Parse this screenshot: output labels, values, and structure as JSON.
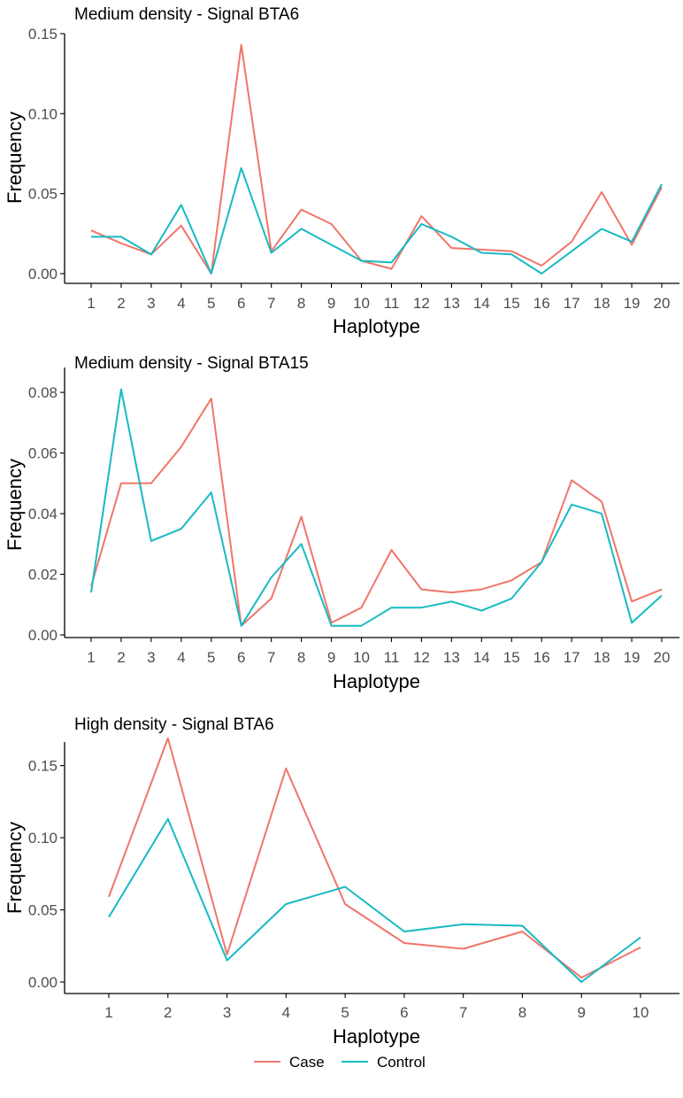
{
  "colors": {
    "case": "#f0756a",
    "control": "#16bac4",
    "axis": "#000000"
  },
  "legend": {
    "case_label": "Case",
    "control_label": "Control"
  },
  "chart_data": [
    {
      "type": "line",
      "title": "Medium density - Signal BTA6",
      "xlabel": "Haplotype",
      "ylabel": "Frequency",
      "categories": [
        "1",
        "2",
        "3",
        "4",
        "5",
        "6",
        "7",
        "8",
        "9",
        "10",
        "11",
        "12",
        "13",
        "14",
        "15",
        "16",
        "17",
        "18",
        "19",
        "20"
      ],
      "ylim": [
        0,
        0.15
      ],
      "yticks": [
        0,
        0.05,
        0.1,
        0.15
      ],
      "ytick_labels": [
        "0.00",
        "0.05",
        "0.10",
        "0.15"
      ],
      "series": [
        {
          "name": "Case",
          "values": [
            0.027,
            0.019,
            0.012,
            0.03,
            0.0,
            0.143,
            0.014,
            0.04,
            0.031,
            0.008,
            0.003,
            0.036,
            0.016,
            0.015,
            0.014,
            0.005,
            0.02,
            0.051,
            0.018,
            0.054
          ]
        },
        {
          "name": "Control",
          "values": [
            0.023,
            0.023,
            0.012,
            0.043,
            0.0,
            0.066,
            0.013,
            0.028,
            0.018,
            0.008,
            0.007,
            0.031,
            0.023,
            0.013,
            0.012,
            0.0,
            0.014,
            0.028,
            0.02,
            0.056
          ]
        }
      ]
    },
    {
      "type": "line",
      "title": "Medium density - Signal BTA15",
      "xlabel": "Haplotype",
      "ylabel": "Frequency",
      "categories": [
        "1",
        "2",
        "3",
        "4",
        "5",
        "6",
        "7",
        "8",
        "9",
        "10",
        "11",
        "12",
        "13",
        "14",
        "15",
        "16",
        "17",
        "18",
        "19",
        "20"
      ],
      "ylim": [
        0,
        0.085
      ],
      "yticks": [
        0,
        0.02,
        0.04,
        0.06,
        0.08
      ],
      "ytick_labels": [
        "0.00",
        "0.02",
        "0.04",
        "0.06",
        "0.08"
      ],
      "series": [
        {
          "name": "Case",
          "values": [
            0.016,
            0.05,
            0.05,
            0.062,
            0.078,
            0.003,
            0.012,
            0.039,
            0.004,
            0.009,
            0.028,
            0.015,
            0.014,
            0.015,
            0.018,
            0.024,
            0.051,
            0.044,
            0.011,
            0.015
          ]
        },
        {
          "name": "Control",
          "values": [
            0.014,
            0.081,
            0.031,
            0.035,
            0.047,
            0.003,
            0.019,
            0.03,
            0.003,
            0.003,
            0.009,
            0.009,
            0.011,
            0.008,
            0.012,
            0.024,
            0.043,
            0.04,
            0.004,
            0.013
          ]
        }
      ]
    },
    {
      "type": "line",
      "title": "High density - Signal BTA6",
      "xlabel": "Haplotype",
      "ylabel": "Frequency",
      "categories": [
        "1",
        "2",
        "3",
        "4",
        "5",
        "6",
        "7",
        "8",
        "9",
        "10"
      ],
      "ylim": [
        0,
        0.17
      ],
      "yticks": [
        0,
        0.05,
        0.1,
        0.15
      ],
      "ytick_labels": [
        "0.00",
        "0.05",
        "0.10",
        "0.15"
      ],
      "series": [
        {
          "name": "Case",
          "values": [
            0.059,
            0.169,
            0.019,
            0.148,
            0.054,
            0.027,
            0.023,
            0.035,
            0.003,
            0.024
          ]
        },
        {
          "name": "Control",
          "values": [
            0.045,
            0.113,
            0.015,
            0.054,
            0.066,
            0.035,
            0.04,
            0.039,
            0.0,
            0.031
          ]
        }
      ]
    }
  ]
}
